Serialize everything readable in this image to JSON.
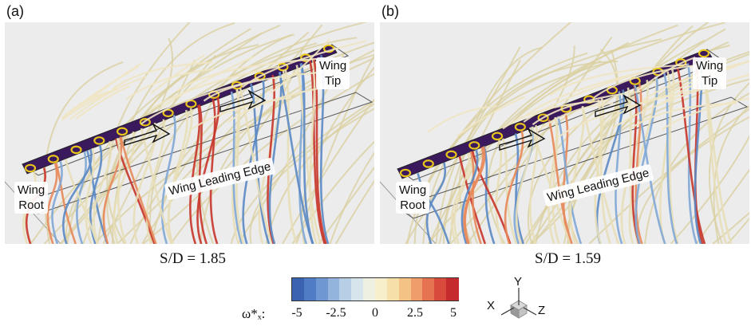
{
  "panels": [
    {
      "label": "(a)",
      "tip_label": "Wing\nTip",
      "root_label": "Wing\nRoot",
      "edge_label": "Wing Leading Edge",
      "ratio_label": "S/D = 1.85"
    },
    {
      "label": "(b)",
      "tip_label": "Wing\nTip",
      "root_label": "Wing\nRoot",
      "edge_label": "Wing Leading Edge",
      "ratio_label": "S/D = 1.59"
    }
  ],
  "colorbar": {
    "title": "ω*ₓ:",
    "ticks": [
      "-5",
      "-2.5",
      "0",
      "2.5",
      "5"
    ],
    "range": [
      -5,
      5
    ],
    "colors": [
      "#3a62b0",
      "#4f7cc4",
      "#6f98d2",
      "#93b4dc",
      "#b7cfe6",
      "#d6e4ec",
      "#eef0e2",
      "#f7efcc",
      "#f6dfa8",
      "#f4c285",
      "#ef9d6a",
      "#e57352",
      "#d84a3c",
      "#c52a2c"
    ]
  },
  "axes": {
    "y": "Y",
    "x": "X",
    "z": "Z"
  },
  "colors": {
    "wing_body": "#3a1a5c",
    "fan_ring": "#e8c51a",
    "streamline_neutral": "#e8dfb8",
    "streamline_positive": "#c8352a",
    "streamline_negative": "#5a88c4"
  }
}
